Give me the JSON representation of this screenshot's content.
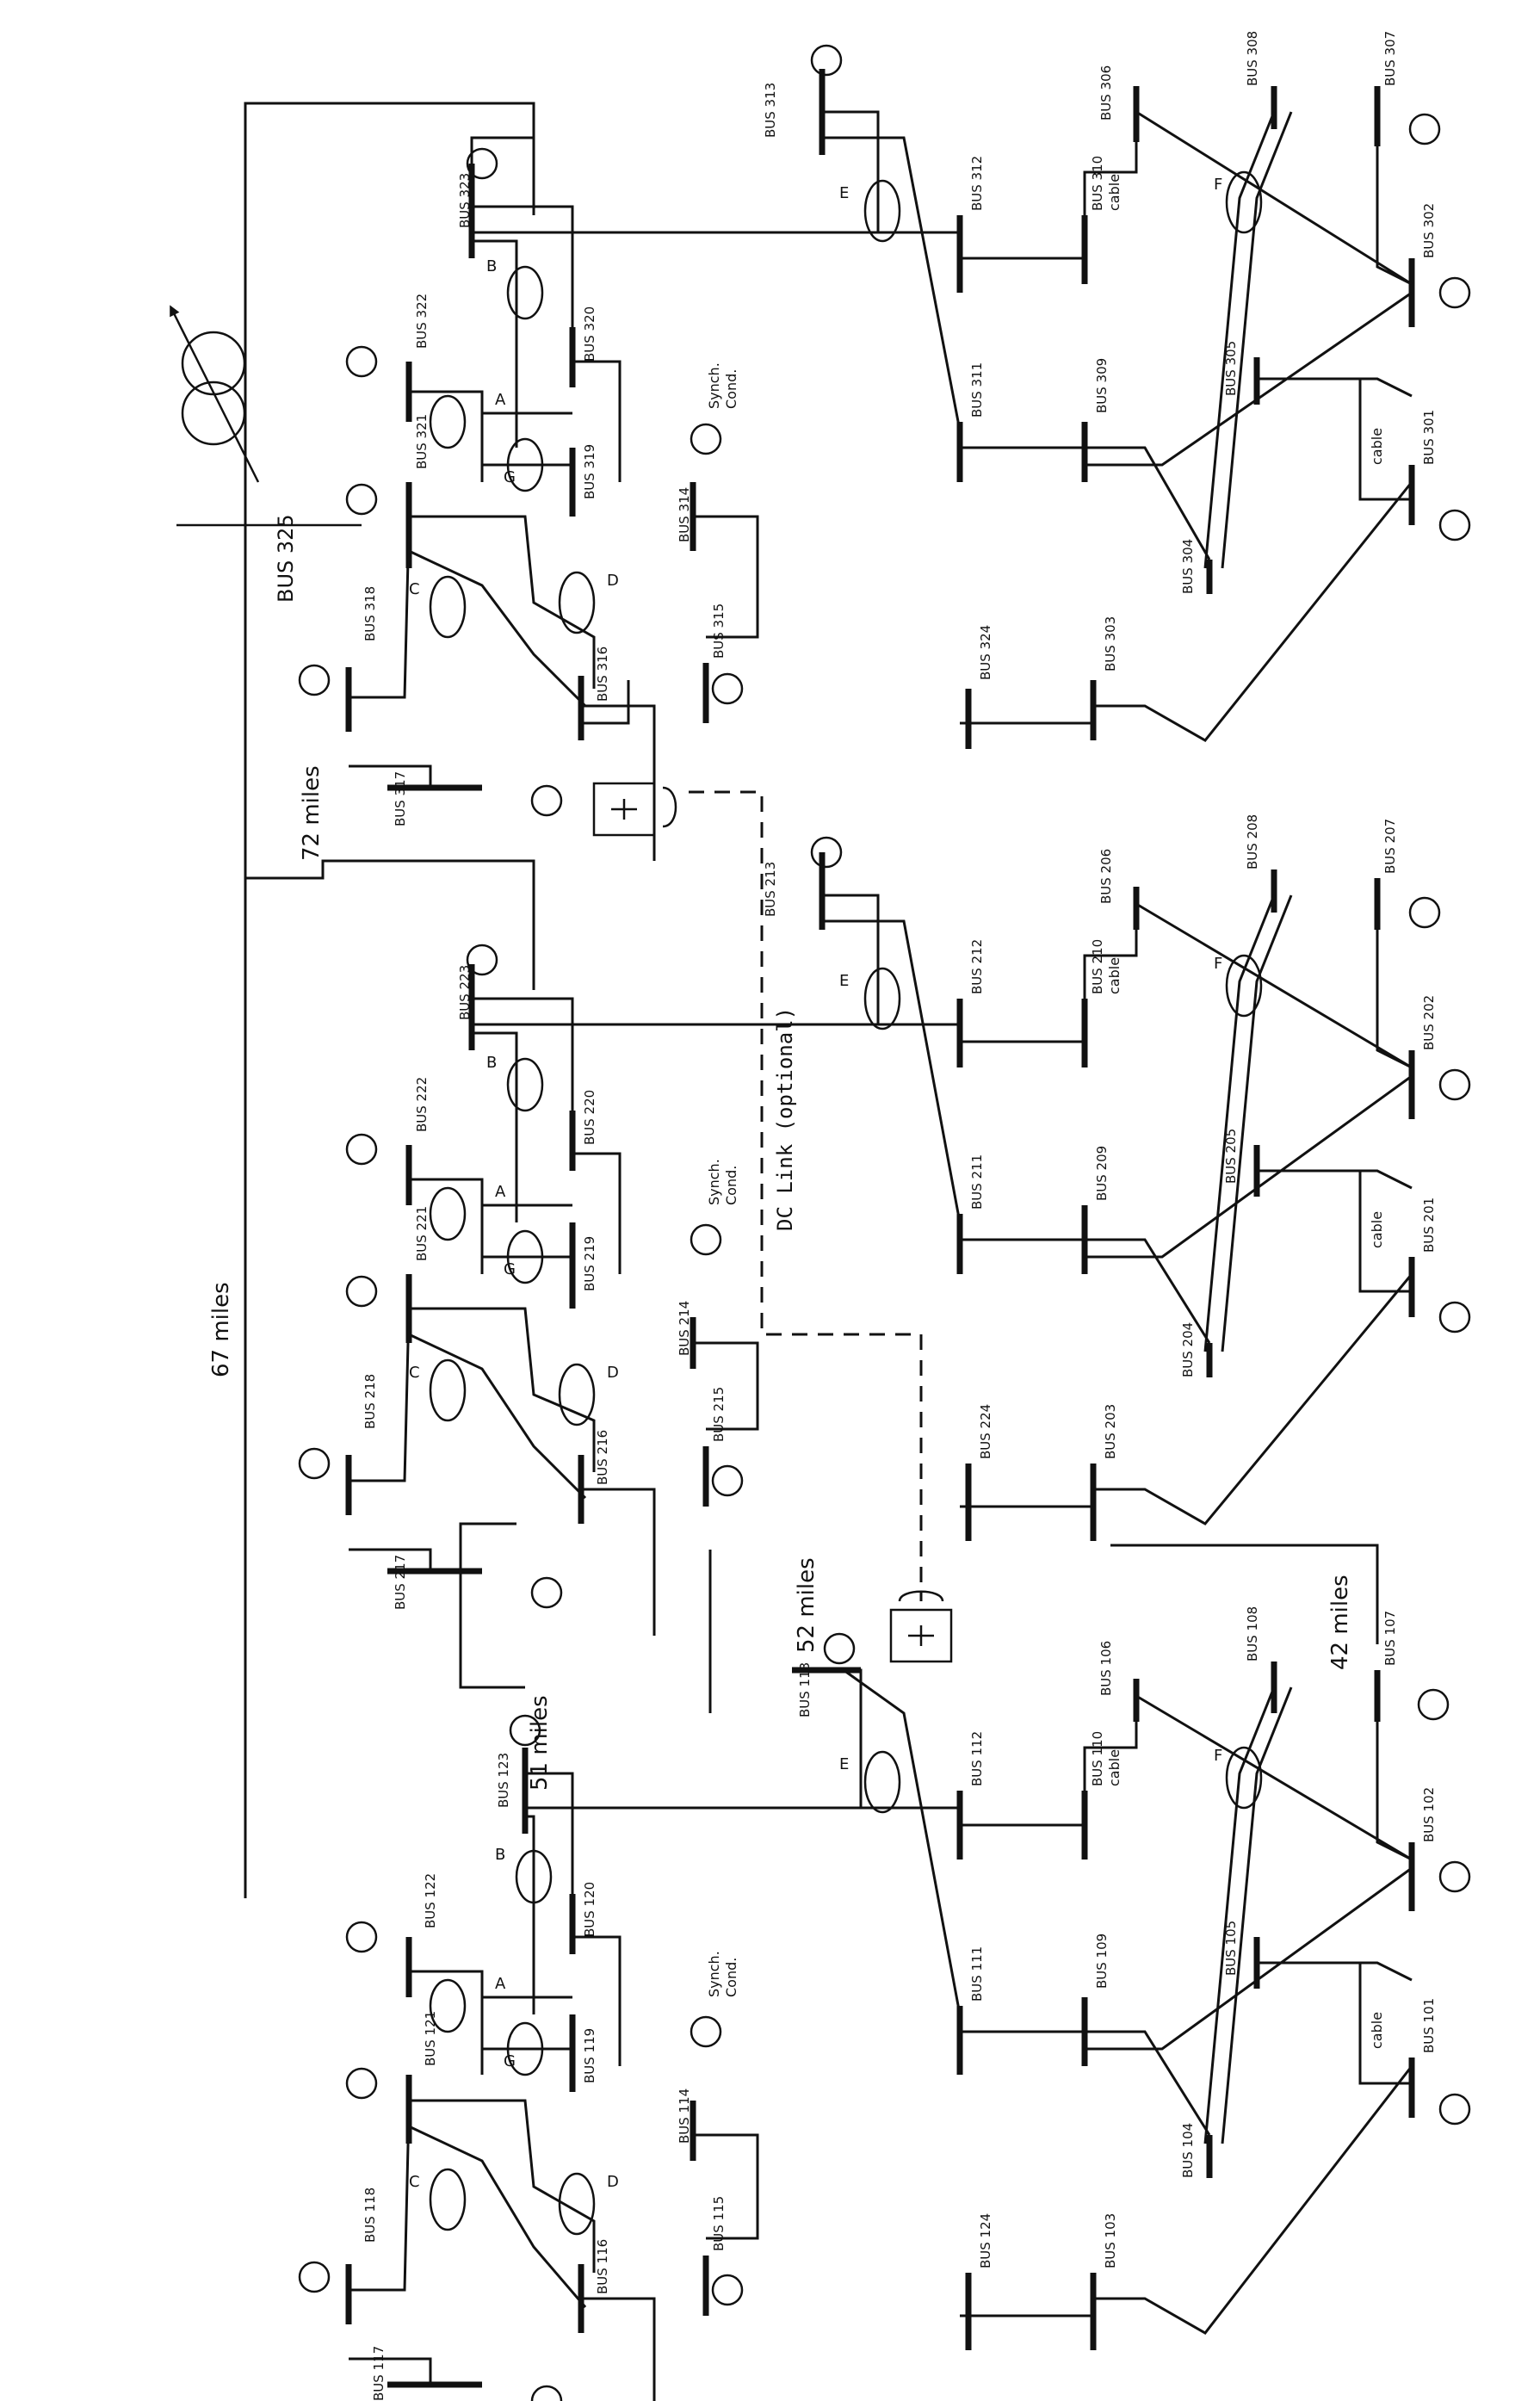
{
  "diagram": {
    "tie_labels": {
      "miles_67": "67 miles",
      "miles_72": "72 miles",
      "miles_51": "51 miles",
      "miles_52": "52 miles",
      "miles_42": "42 miles",
      "dc_link": "DC Link (optional)",
      "bus_325": "BUS 325"
    },
    "corridor_letters": [
      "A",
      "B",
      "C",
      "D",
      "E",
      "F",
      "G"
    ],
    "generic_labels": {
      "synch_cond_1": "Synch.",
      "synch_cond_2": "Cond.",
      "cable": "cable"
    },
    "areas": [
      {
        "id": "area1",
        "buses": {
          "b101": "BUS 101",
          "b102": "BUS 102",
          "b103": "BUS 103",
          "b104": "BUS 104",
          "b105": "BUS 105",
          "b106": "BUS 106",
          "b107": "BUS 107",
          "b108": "BUS 108",
          "b109": "BUS 109",
          "b110": "BUS 110",
          "b111": "BUS 111",
          "b112": "BUS 112",
          "b113": "BUS 113",
          "b114": "BUS 114",
          "b115": "BUS 115",
          "b116": "BUS 116",
          "b117": "BUS 117",
          "b118": "BUS 118",
          "b119": "BUS 119",
          "b120": "BUS 120",
          "b121": "BUS 121",
          "b122": "BUS 122",
          "b123": "BUS 123",
          "b124": "BUS 124"
        }
      },
      {
        "id": "area2",
        "buses": {
          "b201": "BUS 201",
          "b202": "BUS 202",
          "b203": "BUS 203",
          "b204": "BUS 204",
          "b205": "BUS 205",
          "b206": "BUS 206",
          "b207": "BUS 207",
          "b208": "BUS 208",
          "b209": "BUS 209",
          "b210": "BUS 210",
          "b211": "BUS 211",
          "b212": "BUS 212",
          "b213": "BUS 213",
          "b214": "BUS 214",
          "b215": "BUS 215",
          "b216": "BUS 216",
          "b217": "BUS 217",
          "b218": "BUS 218",
          "b219": "BUS 219",
          "b220": "BUS 220",
          "b221": "BUS 221",
          "b222": "BUS 222",
          "b223": "BUS 223",
          "b224": "BUS 224"
        }
      },
      {
        "id": "area3",
        "buses": {
          "b301": "BUS 301",
          "b302": "BUS 302",
          "b303": "BUS 303",
          "b304": "BUS 304",
          "b305": "BUS 305",
          "b306": "BUS 306",
          "b307": "BUS 307",
          "b308": "BUS 308",
          "b309": "BUS 309",
          "b310": "BUS 310",
          "b311": "BUS 311",
          "b312": "BUS 312",
          "b313": "BUS 313",
          "b314": "BUS 314",
          "b315": "BUS 315",
          "b316": "BUS 316",
          "b317": "BUS 317",
          "b318": "BUS 318",
          "b319": "BUS 319",
          "b320": "BUS 320",
          "b321": "BUS 321",
          "b322": "BUS 322",
          "b323": "BUS 323",
          "b324": "BUS 324"
        }
      }
    ]
  }
}
